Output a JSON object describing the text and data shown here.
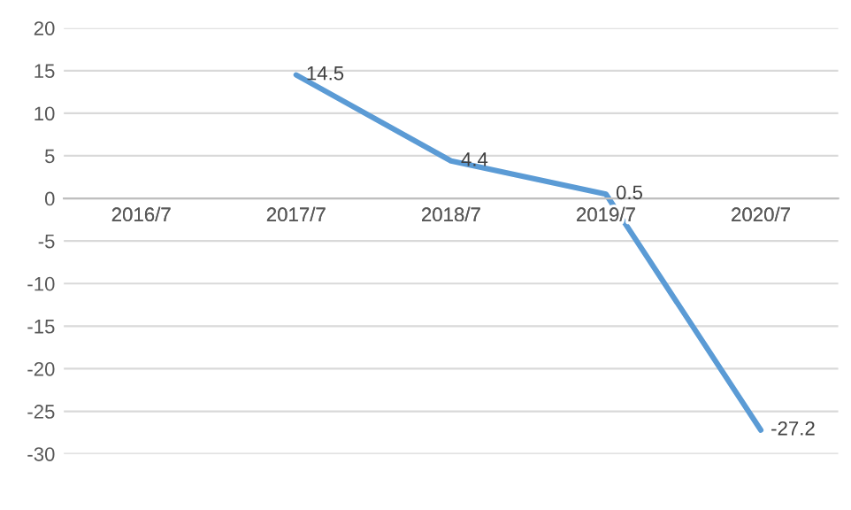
{
  "chart_data": {
    "type": "line",
    "categories": [
      "2016/7",
      "2017/7",
      "2018/7",
      "2019/7",
      "2020/7"
    ],
    "series": [
      {
        "color": "#5b9bd5",
        "values": [
          null,
          14.5,
          4.4,
          0.5,
          -27.2
        ]
      }
    ],
    "ylim": [
      -30,
      20
    ],
    "yticks": [
      -30,
      -25,
      -20,
      -15,
      -10,
      -5,
      0,
      5,
      10,
      15,
      20
    ],
    "grid": "y",
    "data_labels": true
  }
}
